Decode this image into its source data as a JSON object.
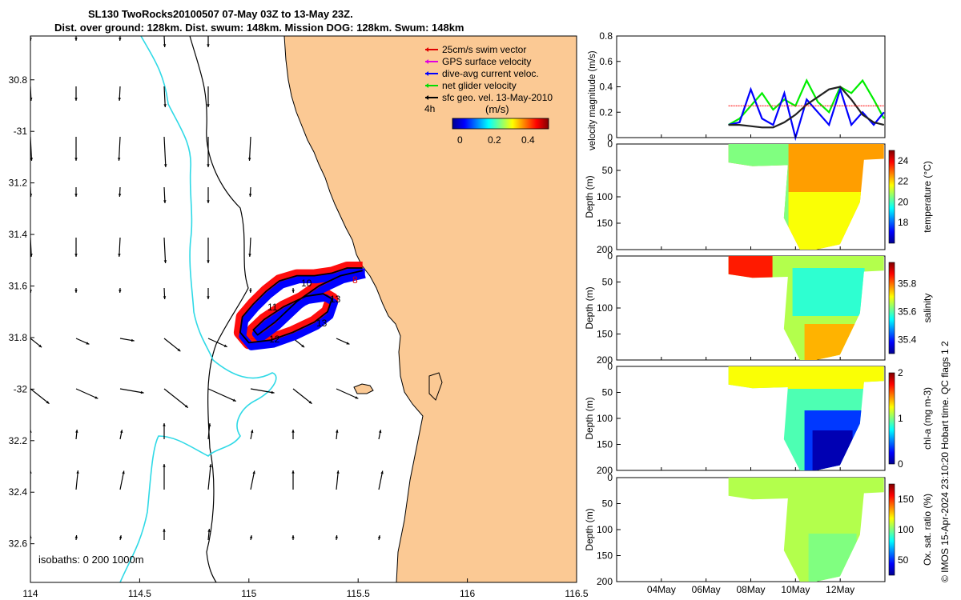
{
  "header": {
    "line1": "SL130 TwoRocks20100507 07-May 03Z to 13-May 23Z.",
    "line2": "Dist. over ground: 128km. Dist. swum: 148km. Mission DOG: 128km. Swum: 148km"
  },
  "map": {
    "lon_ticks": [
      "114",
      "114.5",
      "115",
      "115.5",
      "116",
      "116.5"
    ],
    "lat_ticks": [
      "30.8",
      "-31",
      "31.2",
      "31.4",
      "31.6",
      "31.8",
      "-32",
      "32.2",
      "32.4",
      "32.6"
    ],
    "legend": [
      {
        "label": "25cm/s swim vector",
        "color": "#e00000"
      },
      {
        "label": "GPS surface velocity",
        "color": "#e000e0"
      },
      {
        "label": "dive-avg current veloc.",
        "color": "#0000ff"
      },
      {
        "label": "net glider velocity",
        "color": "#00dd00"
      },
      {
        "label": "sfc geo. vel. 13-May-2010",
        "color": "#000000"
      }
    ],
    "time_label": "4h",
    "colorbar_unit": "(m/s)",
    "colorbar_ticks": [
      "0",
      "0.2",
      "0.4"
    ],
    "track_labels": [
      "11",
      "12",
      "13",
      "13",
      "8",
      "10"
    ],
    "isobaths_label": "isobaths: 0   200  1000m",
    "colors": {
      "land": "#fbc994",
      "isobath_200": "#2fd9e6",
      "ocean": "#ffffff"
    }
  },
  "velocity_panel": {
    "ylabel": "velocity magnitude (m/s)",
    "yticks": [
      "0",
      "0.2",
      "0.4",
      "0.6",
      "0.8"
    ]
  },
  "sections": [
    {
      "ylabel": "Depth (m)",
      "cb_label": "temperature (°C)",
      "cb_ticks": [
        "24",
        "22",
        "20",
        "18"
      ]
    },
    {
      "ylabel": "Depth (m)",
      "cb_label": "salinity",
      "cb_ticks": [
        "35.8",
        "35.6",
        "35.4"
      ]
    },
    {
      "ylabel": "Depth (m)",
      "cb_label": "chl-a (mg m-3)",
      "cb_ticks": [
        "2",
        "1",
        "0"
      ]
    },
    {
      "ylabel": "Depth (m)",
      "cb_label": "Ox. sat. ratio (%)",
      "cb_ticks": [
        "150",
        "100",
        "50"
      ]
    }
  ],
  "depth_ticks": [
    "0",
    "50",
    "100",
    "150",
    "200"
  ],
  "time_ticks": [
    "04May",
    "06May",
    "08May",
    "10May",
    "12May"
  ],
  "credit": "© IMOS 15-Apr-2024 23:10:20 Hobart time. QC flags 1  2",
  "chart_data": [
    {
      "type": "scatter",
      "x_name": "Longitude",
      "y_name": "Latitude",
      "xlim": [
        114,
        116.5
      ],
      "ylim": [
        -32.75,
        -30.63
      ],
      "track": {
        "lon": [
          115.52,
          115.45,
          115.38,
          115.3,
          115.22,
          115.14,
          115.08,
          115.02,
          114.97,
          114.96,
          115.0,
          115.1,
          115.2,
          115.3,
          115.36,
          115.38,
          115.34,
          115.26,
          115.16,
          115.07,
          115.02,
          115.04,
          115.12,
          115.22,
          115.32,
          115.42,
          115.52
        ],
        "lat": [
          -31.53,
          -31.53,
          -31.55,
          -31.56,
          -31.56,
          -31.58,
          -31.62,
          -31.67,
          -31.72,
          -31.78,
          -31.82,
          -31.81,
          -31.78,
          -31.74,
          -31.7,
          -31.65,
          -31.63,
          -31.64,
          -31.68,
          -31.73,
          -31.77,
          -31.79,
          -31.74,
          -31.66,
          -31.6,
          -31.56,
          -31.54
        ]
      }
    },
    {
      "type": "line",
      "title": "",
      "x_name": "Date",
      "ylabel": "velocity magnitude (m/s)",
      "xlim": [
        "2010-05-02",
        "2010-05-14"
      ],
      "ylim": [
        0,
        0.8
      ],
      "x": [
        "2010-05-07",
        "2010-05-07 12:00",
        "2010-05-08",
        "2010-05-08 12:00",
        "2010-05-09",
        "2010-05-09 12:00",
        "2010-05-10",
        "2010-05-10 12:00",
        "2010-05-11",
        "2010-05-11 12:00",
        "2010-05-12",
        "2010-05-12 12:00",
        "2010-05-13",
        "2010-05-13 12:00",
        "2010-05-13 23:00"
      ],
      "series": [
        {
          "color": "#00ee00",
          "values": [
            0.1,
            0.15,
            0.25,
            0.35,
            0.22,
            0.3,
            0.25,
            0.45,
            0.28,
            0.2,
            0.4,
            0.35,
            0.45,
            0.3,
            0.15
          ]
        },
        {
          "color": "#0000ff",
          "values": [
            0.1,
            0.12,
            0.38,
            0.15,
            0.1,
            0.35,
            0.0,
            0.3,
            0.2,
            0.1,
            0.38,
            0.1,
            0.2,
            0.1,
            0.2
          ]
        },
        {
          "color": "#222222",
          "values": [
            0.1,
            0.1,
            0.09,
            0.08,
            0.08,
            0.12,
            0.18,
            0.26,
            0.32,
            0.38,
            0.4,
            0.3,
            0.18,
            0.12,
            0.1
          ]
        },
        {
          "color": "#ff0000",
          "values": [
            0.25,
            0.25,
            0.25,
            0.25,
            0.25,
            0.25,
            0.25,
            0.25,
            0.25,
            0.25,
            0.25,
            0.25,
            0.25,
            0.25,
            0.25
          ]
        }
      ]
    },
    {
      "type": "heatmap",
      "variable": "temperature (°C)",
      "clim": [
        16,
        25
      ],
      "ylabel": "Depth (m)"
    },
    {
      "type": "heatmap",
      "variable": "salinity",
      "clim": [
        35.3,
        35.95
      ],
      "ylabel": "Depth (m)"
    },
    {
      "type": "heatmap",
      "variable": "chl-a (mg m-3)",
      "clim": [
        0,
        2
      ],
      "ylabel": "Depth (m)"
    },
    {
      "type": "heatmap",
      "variable": "Ox. sat. ratio (%)",
      "clim": [
        25,
        175
      ],
      "ylabel": "Depth (m)"
    }
  ]
}
